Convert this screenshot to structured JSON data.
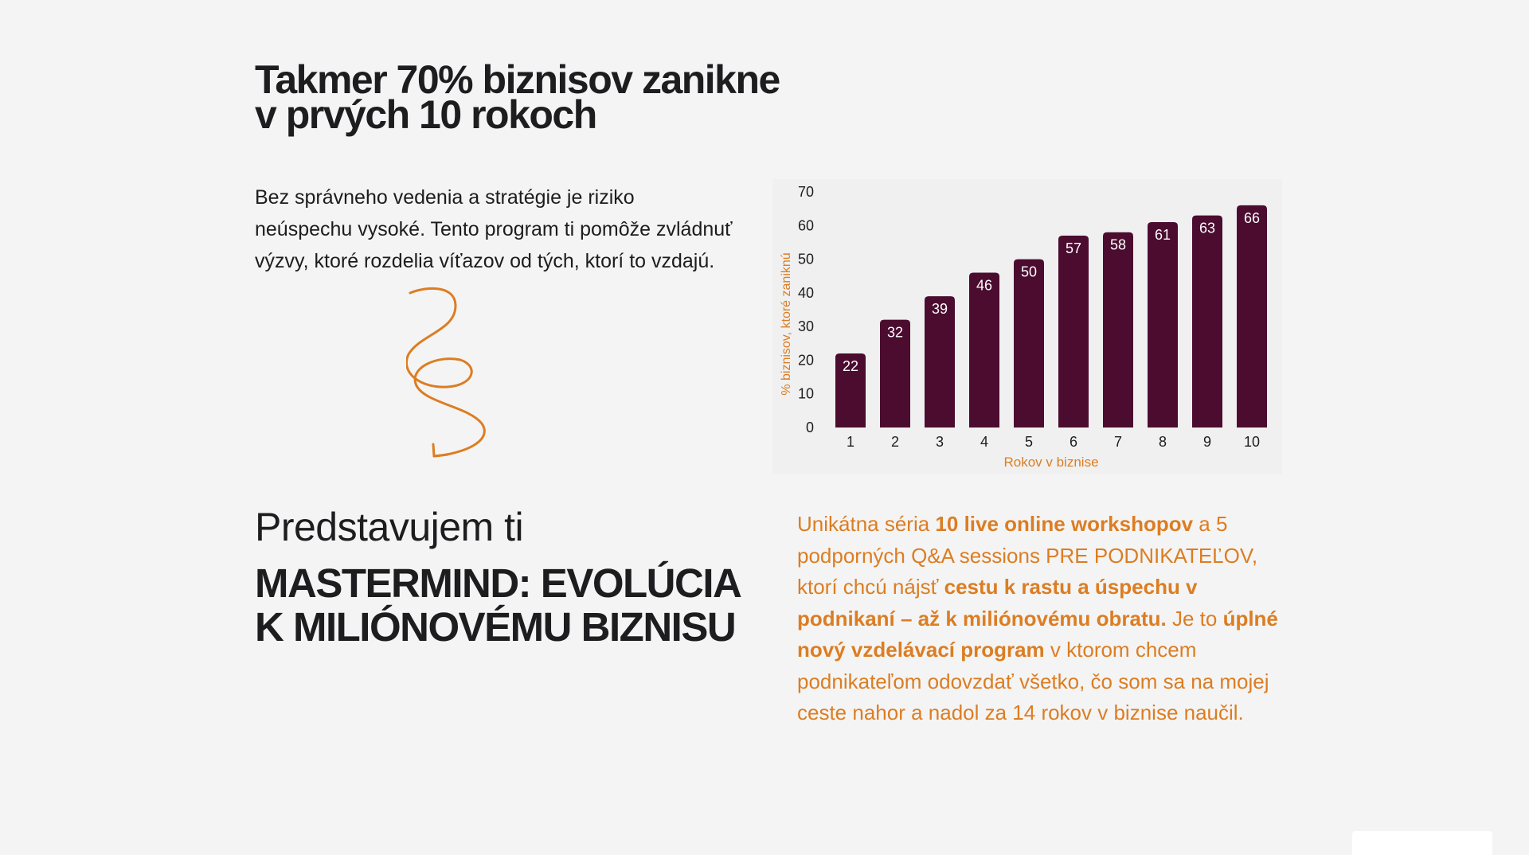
{
  "headline": {
    "line1": "Takmer 70% biznisov zanikne",
    "line2": "v prvých 10 rokoch"
  },
  "intro": {
    "text": "Bez správneho vedenia a stratégie je riziko neúspechu vysoké. Tento program ti pomôže zvládnuť výzvy, ktoré rozdelia víťazov od tých, ktorí to vzdajú."
  },
  "chart_data": {
    "type": "bar",
    "categories": [
      "1",
      "2",
      "3",
      "4",
      "5",
      "6",
      "7",
      "8",
      "9",
      "10"
    ],
    "values": [
      22,
      32,
      39,
      46,
      50,
      57,
      58,
      61,
      63,
      66
    ],
    "xlabel": "Rokov v biznise",
    "ylabel": "% biznisov, ktoré zaniknú",
    "ylim": [
      0,
      70
    ],
    "yticks": [
      0,
      10,
      20,
      30,
      40,
      50,
      60,
      70
    ],
    "grid": false,
    "data_labels": true,
    "colors": {
      "bar": "#4b0c2f",
      "bar_label": "#ffffff",
      "axis_title": "#dc7d22",
      "tick": "#1d1d1f",
      "panel": "#f0f0f0"
    }
  },
  "offer": {
    "pre": "Predstavujem ti",
    "title_line1": "MASTERMIND: EVOLÚCIA",
    "title_line2": "K MILIÓNOVÉMU BIZNISU"
  },
  "description": {
    "p1": "Unikátna séria ",
    "b1": "10 live online workshopov",
    "p2": " a 5 podporných Q&A sessions PRE PODNIKATEĽOV, ktorí chcú nájsť ",
    "b2": "cestu k rastu a úspechu v podnikaní – až k miliónovému obratu.",
    "p3": " Je to ",
    "b3": "úplné nový vzdelávací program",
    "p4": " v ktorom chcem podnikateľom odovzdať všetko, čo som sa na mojej ceste nahor a nadol za 14 rokov v biznise naučil."
  },
  "colors": {
    "background": "#f4f4f4",
    "text": "#1d1d1f",
    "accent_orange": "#dc7d22",
    "bar_plum": "#4b0c2f"
  },
  "icons": {
    "arrow": "squiggle-arrow-icon"
  }
}
